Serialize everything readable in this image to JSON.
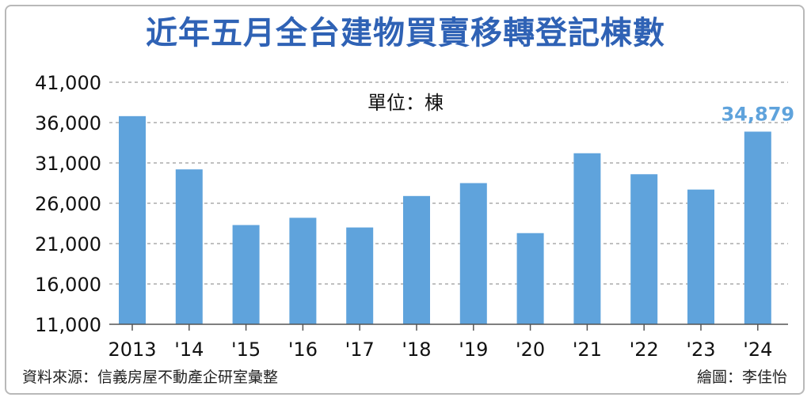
{
  "title": "近年五月全台建物買賣移轉登記棟數",
  "chart_data": {
    "type": "bar",
    "categories": [
      "2013",
      "'14",
      "'15",
      "'16",
      "'17",
      "'18",
      "'19",
      "'20",
      "'21",
      "'22",
      "'23",
      "'24"
    ],
    "values": [
      36800,
      30200,
      23300,
      24200,
      23000,
      26900,
      28500,
      22300,
      32200,
      29600,
      27700,
      34879
    ],
    "yticks": [
      "11,000",
      "16,000",
      "21,000",
      "26,000",
      "31,000",
      "36,000",
      "41,000"
    ],
    "ylim": [
      11000,
      41000
    ],
    "unit_label": "單位：棟",
    "highlight": {
      "index": 11,
      "label": "34,879"
    },
    "grid": true,
    "colors": {
      "bar": "#5fa3dc",
      "highlight_label": "#5fa3dc",
      "title": "#2f62b5",
      "grid": "#9a9a9a"
    }
  },
  "source": "資料來源：信義房屋不動產企研室彙整",
  "credit": "繪圖：李佳怡"
}
